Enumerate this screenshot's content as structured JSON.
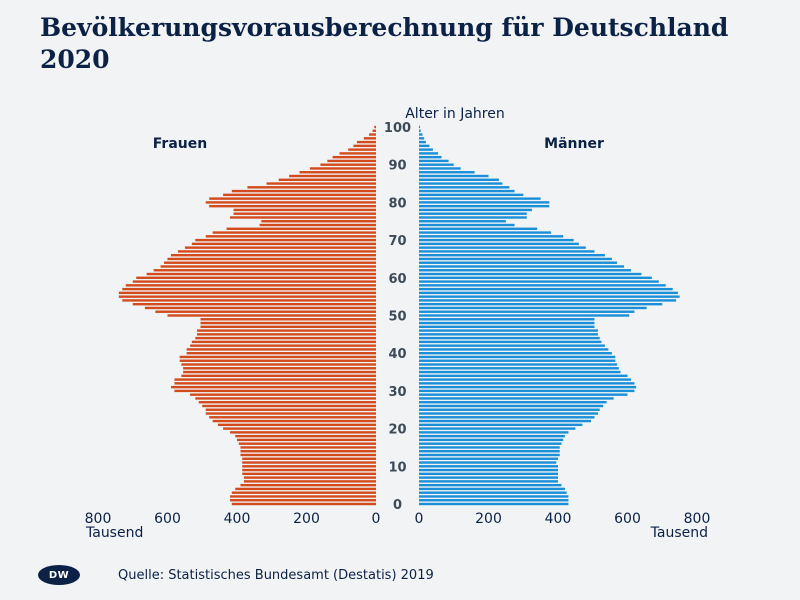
{
  "title": "Bevölkerungsvorausberechnung für Deutschland 2020",
  "source": "Quelle: Statistisches Bundesamt (Destatis) 2019",
  "logo": "DW",
  "colors": {
    "frauen": "#d34a1c",
    "maenner": "#1a8fd8",
    "text": "#0b2146",
    "background": "#f1f3f4"
  },
  "chart_data": {
    "type": "bar",
    "orientation": "horizontal-population-pyramid",
    "title": "Bevölkerungsvorausberechnung für Deutschland 2020",
    "y_axis_label": "Alter in Jahren",
    "x_axis_unit_label": "Tausend",
    "xlim": [
      0,
      800
    ],
    "x_ticks": [
      800,
      600,
      400,
      200,
      0
    ],
    "x_ticks_right": [
      0,
      200,
      400,
      600,
      800
    ],
    "age_ticks": [
      0,
      10,
      20,
      30,
      40,
      50,
      60,
      70,
      80,
      90,
      100
    ],
    "ages": [
      0,
      1,
      2,
      3,
      4,
      5,
      6,
      7,
      8,
      9,
      10,
      11,
      12,
      13,
      14,
      15,
      16,
      17,
      18,
      19,
      20,
      21,
      22,
      23,
      24,
      25,
      26,
      27,
      28,
      29,
      30,
      31,
      32,
      33,
      34,
      35,
      36,
      37,
      38,
      39,
      40,
      41,
      42,
      43,
      44,
      45,
      46,
      47,
      48,
      49,
      50,
      51,
      52,
      53,
      54,
      55,
      56,
      57,
      58,
      59,
      60,
      61,
      62,
      63,
      64,
      65,
      66,
      67,
      68,
      69,
      70,
      71,
      72,
      73,
      74,
      75,
      76,
      77,
      78,
      79,
      80,
      81,
      82,
      83,
      84,
      85,
      86,
      87,
      88,
      89,
      90,
      91,
      92,
      93,
      94,
      95,
      96,
      97,
      98,
      99,
      100
    ],
    "series": [
      {
        "name": "Frauen",
        "side": "left",
        "values": [
          415,
          420,
          420,
          415,
          405,
          390,
          380,
          380,
          385,
          385,
          385,
          385,
          385,
          390,
          390,
          390,
          395,
          400,
          405,
          420,
          440,
          455,
          470,
          480,
          490,
          490,
          500,
          510,
          520,
          535,
          580,
          590,
          580,
          580,
          560,
          555,
          555,
          560,
          565,
          565,
          545,
          545,
          535,
          530,
          520,
          515,
          515,
          505,
          505,
          505,
          600,
          635,
          665,
          700,
          730,
          740,
          740,
          730,
          720,
          700,
          690,
          660,
          640,
          620,
          610,
          600,
          590,
          570,
          550,
          530,
          520,
          490,
          470,
          430,
          335,
          330,
          420,
          410,
          410,
          480,
          490,
          480,
          440,
          415,
          370,
          315,
          280,
          250,
          220,
          190,
          160,
          140,
          125,
          105,
          80,
          65,
          55,
          35,
          20,
          10,
          5
        ]
      },
      {
        "name": "Männer",
        "side": "right",
        "values": [
          430,
          430,
          430,
          425,
          420,
          410,
          400,
          400,
          400,
          400,
          400,
          395,
          400,
          405,
          405,
          405,
          410,
          415,
          420,
          430,
          450,
          470,
          495,
          505,
          515,
          520,
          530,
          540,
          560,
          600,
          620,
          625,
          620,
          610,
          600,
          580,
          575,
          570,
          565,
          565,
          555,
          545,
          535,
          525,
          520,
          515,
          515,
          505,
          505,
          505,
          605,
          620,
          655,
          700,
          740,
          750,
          745,
          730,
          710,
          690,
          670,
          640,
          610,
          590,
          570,
          555,
          535,
          505,
          480,
          460,
          445,
          415,
          380,
          340,
          275,
          250,
          310,
          310,
          325,
          375,
          375,
          350,
          300,
          275,
          260,
          240,
          230,
          200,
          160,
          120,
          100,
          85,
          65,
          55,
          40,
          30,
          20,
          15,
          10,
          5,
          3
        ]
      }
    ]
  },
  "labels": {
    "frauen": "Frauen",
    "maenner": "Männer"
  }
}
